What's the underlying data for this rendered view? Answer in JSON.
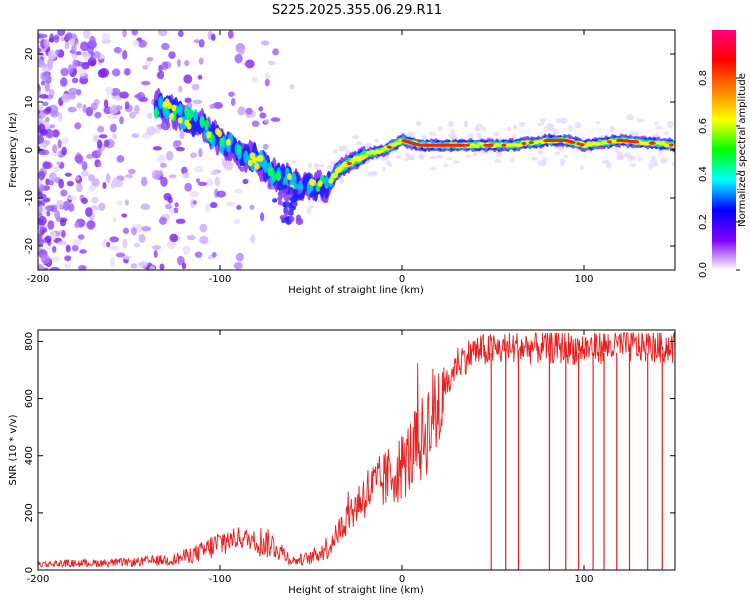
{
  "title": "S225.2025.355.06.29.R11",
  "chart_data": [
    {
      "type": "heatmap",
      "name": "spectrogram",
      "xlabel": "Height of straight line (km)",
      "ylabel": "Frequency (Hz)",
      "xlim": [
        -200,
        150
      ],
      "ylim": [
        -25,
        25
      ],
      "xticks": [
        -200,
        -100,
        0,
        100
      ],
      "yticks": [
        -20,
        -10,
        0,
        10,
        20
      ],
      "colorbar": {
        "label": "Normalized spectral amplitude",
        "range": [
          0,
          1
        ],
        "ticks": [
          0.0,
          0.2,
          0.4,
          0.6,
          0.8
        ],
        "tick_labels": [
          "0.0",
          "0.2",
          "0.4",
          "0.6",
          "0.8"
        ],
        "colors": [
          "#ffffff",
          "#8000ff",
          "#0000ff",
          "#00ffff",
          "#00ff00",
          "#ffff00",
          "#ff8000",
          "#ff0000",
          "#ff0080"
        ]
      },
      "ridge": {
        "x": [
          -130,
          -120,
          -110,
          -100,
          -90,
          -80,
          -70,
          -60,
          -50,
          -40,
          -35,
          -30,
          -20,
          -10,
          0,
          10,
          20,
          40,
          60,
          80,
          90,
          100,
          120,
          150
        ],
        "freq": [
          9,
          7,
          5,
          2,
          0,
          -2,
          -5,
          -7,
          -8,
          -7,
          -4,
          -3,
          -1,
          0,
          2,
          1,
          1,
          1,
          1,
          2,
          2,
          1,
          2,
          1
        ]
      }
    },
    {
      "type": "line",
      "name": "snr",
      "xlabel": "Height of straight line (km)",
      "ylabel": "SNR (10 * v/v)",
      "xlim": [
        -200,
        150
      ],
      "ylim": [
        0,
        840
      ],
      "xticks": [
        -200,
        -100,
        0,
        100
      ],
      "yticks": [
        0,
        200,
        400,
        600,
        800
      ],
      "color": "#e82020",
      "trend": {
        "x": [
          -200,
          -150,
          -125,
          -110,
          -100,
          -90,
          -80,
          -70,
          -60,
          -50,
          -40,
          -30,
          -20,
          -10,
          0,
          10,
          20,
          30,
          40,
          60,
          80,
          100,
          120,
          150
        ],
        "y": [
          20,
          25,
          35,
          60,
          90,
          110,
          100,
          80,
          30,
          40,
          80,
          180,
          260,
          300,
          350,
          430,
          560,
          720,
          760,
          770,
          775,
          770,
          780,
          775
        ]
      },
      "dropouts_x": [
        49,
        57,
        64,
        81,
        90,
        97,
        105,
        111,
        118,
        125,
        135,
        143
      ]
    }
  ]
}
